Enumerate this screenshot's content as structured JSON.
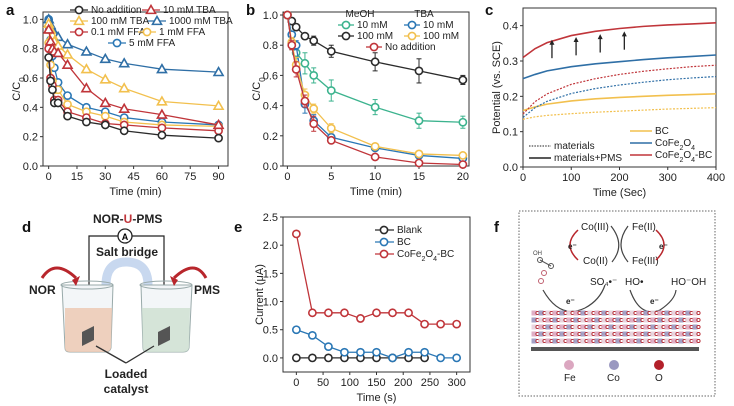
{
  "panel_labels": {
    "a": "a",
    "b": "b",
    "c": "c",
    "d": "d",
    "e": "e",
    "f": "f"
  },
  "colors": {
    "black": "#2b2b2b",
    "red": "#c0353a",
    "yellow": "#f2c04e",
    "blue": "#2f6fa6",
    "teal": "#3cb38e",
    "paleblue": "#2a77b5"
  },
  "chart_data": [
    {
      "id": "a",
      "type": "line",
      "title": "",
      "xlabel": "Time (min)",
      "ylabel": "C/C0",
      "xlim": [
        -3,
        95
      ],
      "ylim": [
        0,
        1.05
      ],
      "xticks": [
        0,
        15,
        30,
        45,
        60,
        75,
        90
      ],
      "yticks": [
        0.0,
        0.2,
        0.4,
        0.6,
        0.8,
        1.0
      ],
      "ytick_labels": [
        "0.0",
        "0.2",
        "0.4",
        "0.6",
        "0.8",
        "1.0"
      ],
      "legend": "top",
      "x": [
        0,
        1,
        2,
        3,
        5,
        10,
        20,
        30,
        40,
        60,
        90
      ],
      "series": [
        {
          "name": "No addition",
          "marker": "circle",
          "color": "#2b2b2b",
          "values": [
            0.74,
            0.58,
            0.52,
            0.43,
            0.43,
            0.34,
            0.3,
            0.28,
            0.24,
            0.21,
            0.19
          ]
        },
        {
          "name": "10 mM TBA",
          "marker": "triangle",
          "color": "#c0353a",
          "values": [
            0.93,
            0.85,
            0.8,
            0.78,
            0.77,
            0.69,
            0.53,
            0.43,
            0.39,
            0.35,
            0.28
          ]
        },
        {
          "name": "100 mM TBA",
          "marker": "triangle",
          "color": "#f2c04e",
          "values": [
            0.97,
            0.93,
            0.89,
            0.85,
            0.82,
            0.76,
            0.66,
            0.59,
            0.53,
            0.44,
            0.41
          ]
        },
        {
          "name": "1000 mM TBA",
          "marker": "triangle",
          "color": "#2f6fa6",
          "values": [
            1.0,
            0.96,
            0.93,
            0.9,
            0.88,
            0.83,
            0.78,
            0.73,
            0.7,
            0.66,
            0.64
          ]
        },
        {
          "name": "0.1 mM FFA",
          "marker": "circle",
          "color": "#c0353a",
          "values": [
            0.8,
            0.6,
            0.55,
            0.45,
            0.45,
            0.37,
            0.33,
            0.29,
            0.28,
            0.26,
            0.24
          ]
        },
        {
          "name": "1 mM FFA",
          "marker": "circle",
          "color": "#f2c04e",
          "values": [
            0.84,
            0.69,
            0.58,
            0.52,
            0.52,
            0.42,
            0.37,
            0.34,
            0.3,
            0.28,
            0.27
          ]
        },
        {
          "name": "5 mM FFA",
          "marker": "circle",
          "color": "#2a77b5",
          "values": [
            1.0,
            0.86,
            0.75,
            0.67,
            0.57,
            0.48,
            0.4,
            0.37,
            0.33,
            0.3,
            0.28
          ]
        }
      ]
    },
    {
      "id": "b",
      "type": "line",
      "title": "",
      "xlabel": "Time (min)",
      "ylabel": "C/C0",
      "xlim": [
        -0.5,
        20.7
      ],
      "ylim": [
        0,
        1.02
      ],
      "xticks": [
        0,
        5,
        10,
        15,
        20
      ],
      "yticks": [
        0.0,
        0.2,
        0.4,
        0.6,
        0.8,
        1.0
      ],
      "ytick_labels": [
        "0.0",
        "0.2",
        "0.4",
        "0.6",
        "0.8",
        "1.0"
      ],
      "legend": "top-right",
      "legend_headers": [
        "MeOH",
        "TBA"
      ],
      "x": [
        0,
        0.5,
        1,
        2,
        3,
        5,
        10,
        15,
        20
      ],
      "series": [
        {
          "name": "MeOH 10 mM",
          "label": "10 mM",
          "group": "MeOH",
          "color": "#3cb38e",
          "values": [
            1.0,
            0.81,
            0.75,
            0.68,
            0.6,
            0.5,
            0.39,
            0.3,
            0.29
          ],
          "errors": [
            0,
            0.04,
            0.04,
            0.07,
            0.05,
            0.07,
            0.05,
            0.05,
            0.04
          ]
        },
        {
          "name": "MeOH 100 mM",
          "label": "100 mM",
          "group": "MeOH",
          "color": "#2b2b2b",
          "values": [
            1.0,
            0.96,
            0.92,
            0.86,
            0.83,
            0.76,
            0.69,
            0.63,
            0.57
          ],
          "errors": [
            0,
            0.02,
            0.02,
            0.02,
            0.03,
            0.04,
            0.06,
            0.08,
            0.03
          ]
        },
        {
          "name": "TBA 10 mM",
          "label": "10 mM",
          "group": "TBA",
          "color": "#2a77b5",
          "values": [
            1.0,
            0.87,
            0.8,
            0.41,
            0.3,
            0.19,
            0.12,
            0.07,
            0.05
          ],
          "errors": [
            0,
            0.02,
            0.03,
            0.06,
            0.04,
            0.02,
            0.01,
            0.01,
            0.01
          ]
        },
        {
          "name": "TBA 100 mM",
          "label": "100 mM",
          "group": "TBA",
          "color": "#f2c04e",
          "values": [
            1.0,
            0.82,
            0.67,
            0.47,
            0.38,
            0.25,
            0.13,
            0.08,
            0.07
          ],
          "errors": [
            0,
            0.03,
            0.05,
            0.04,
            0.03,
            0.03,
            0.01,
            0.01,
            0.01
          ]
        },
        {
          "name": "No addition",
          "label": "No addition",
          "group": "",
          "color": "#c0353a",
          "values": [
            1.0,
            0.8,
            0.64,
            0.43,
            0.28,
            0.17,
            0.06,
            0.02,
            0.01
          ],
          "errors": [
            0,
            0.03,
            0.05,
            0.04,
            0.05,
            0.02,
            0.01,
            0.01,
            0.01
          ]
        }
      ]
    },
    {
      "id": "c",
      "type": "line",
      "title": "",
      "xlabel": "Time (Sec)",
      "ylabel": "Potential (vs. SCE)",
      "xlim": [
        0,
        400
      ],
      "ylim": [
        0,
        0.45
      ],
      "xticks": [
        0,
        100,
        200,
        300,
        400
      ],
      "yticks": [
        0.0,
        0.1,
        0.2,
        0.3,
        0.4
      ],
      "ytick_labels": [
        "0.0",
        "0.1",
        "0.2",
        "0.3",
        "0.4"
      ],
      "legend": "bottom",
      "legend_style": [
        {
          "label": "materials",
          "style": "dotted"
        },
        {
          "label": "materials+PMS",
          "style": "solid"
        }
      ],
      "x": [
        0,
        25,
        50,
        100,
        150,
        200,
        250,
        300,
        350,
        400
      ],
      "series": [
        {
          "name": "BC",
          "style": "solid",
          "color": "#f2c04e",
          "values": [
            0.16,
            0.17,
            0.178,
            0.187,
            0.193,
            0.197,
            0.2,
            0.203,
            0.205,
            0.207
          ]
        },
        {
          "name": "CoFe2O4",
          "style": "solid",
          "color": "#2f6fa6",
          "values": [
            0.25,
            0.262,
            0.272,
            0.284,
            0.292,
            0.298,
            0.304,
            0.309,
            0.313,
            0.317
          ]
        },
        {
          "name": "CoFe2O4-BC",
          "style": "solid",
          "color": "#c0353a",
          "values": [
            0.31,
            0.335,
            0.352,
            0.372,
            0.384,
            0.392,
            0.398,
            0.402,
            0.405,
            0.408
          ]
        },
        {
          "name": "BC materials",
          "style": "dotted",
          "color": "#f2c04e",
          "values": [
            0.135,
            0.142,
            0.146,
            0.151,
            0.155,
            0.158,
            0.161,
            0.164,
            0.166,
            0.168
          ]
        },
        {
          "name": "CoFe2O4 materials",
          "style": "dotted",
          "color": "#2f6fa6",
          "values": [
            0.14,
            0.168,
            0.186,
            0.208,
            0.222,
            0.232,
            0.24,
            0.247,
            0.252,
            0.256
          ]
        },
        {
          "name": "CoFe2O4-BC materials",
          "style": "dotted",
          "color": "#c0353a",
          "values": [
            0.15,
            0.185,
            0.207,
            0.234,
            0.25,
            0.262,
            0.271,
            0.278,
            0.284,
            0.288
          ]
        }
      ],
      "legend_entries": [
        "BC",
        "CoFe2O4",
        "CoFe2O4-BC"
      ],
      "arrows_at_x": [
        60,
        110,
        160,
        210
      ]
    },
    {
      "id": "e",
      "type": "line",
      "title": "",
      "xlabel": "Time (s)",
      "ylabel": "Current (μA)",
      "xlim": [
        -25,
        325
      ],
      "ylim": [
        -0.25,
        2.5
      ],
      "xticks": [
        0,
        50,
        100,
        150,
        200,
        250,
        300
      ],
      "yticks": [
        0.0,
        0.5,
        1.0,
        1.5,
        2.0,
        2.5
      ],
      "ytick_labels": [
        "0.0",
        "0.5",
        "1.0",
        "1.5",
        "2.0",
        "2.5"
      ],
      "legend": "top-right",
      "x": [
        0,
        30,
        60,
        90,
        120,
        150,
        180,
        210,
        240,
        270,
        300
      ],
      "series": [
        {
          "name": "Blank",
          "color": "#2b2b2b",
          "values": [
            0,
            0,
            0,
            0,
            0,
            0,
            0,
            0,
            0,
            null,
            null
          ]
        },
        {
          "name": "BC",
          "color": "#2a77b5",
          "values": [
            0.5,
            0.4,
            0.2,
            0.1,
            0.1,
            0.1,
            0.0,
            0.1,
            0.1,
            0.0,
            0.0
          ]
        },
        {
          "name": "CoFe2O4-BC",
          "color": "#c0353a",
          "values": [
            2.2,
            0.8,
            0.8,
            0.8,
            0.7,
            0.8,
            0.8,
            0.8,
            0.6,
            0.6,
            0.6
          ]
        }
      ]
    }
  ],
  "panel_d": {
    "title_prefix": "NOR-",
    "title_mid": "U",
    "title_suffix": "-PMS",
    "ammeter": "A",
    "salt_bridge": "Salt bridge",
    "left": "NOR",
    "right": "PMS",
    "catalyst_line1": "Loaded",
    "catalyst_line2": "catalyst"
  },
  "panel_f": {
    "co3": "Co(III)",
    "co2": "Co(II)",
    "fe2": "Fe(II)",
    "fe3": "Fe(III)",
    "e": "e⁻",
    "so4": "SO₄•⁻",
    "ho": "HO•",
    "hooh": "HO⁻OH",
    "legend": [
      {
        "label": "Fe",
        "color": "#dba7c0"
      },
      {
        "label": "Co",
        "color": "#9a98c0"
      },
      {
        "label": "O",
        "color": "#b3202a"
      }
    ]
  },
  "legend_a": [
    "No addition",
    "10 mM TBA",
    "100 mM TBA",
    "1000 mM TBA",
    "0.1 mM FFA",
    "1 mM FFA",
    "5 mM FFA"
  ]
}
